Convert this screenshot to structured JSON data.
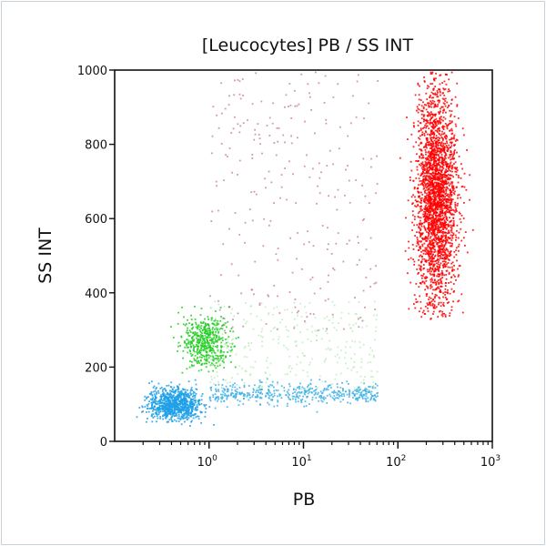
{
  "chart_data": {
    "type": "scatter",
    "title": "[Leucocytes] PB / SS INT",
    "xlabel": "PB",
    "ylabel": "SS INT",
    "xscale": "log",
    "xlim": [
      0.1,
      1000
    ],
    "ylim": [
      0,
      1000
    ],
    "xticks": [
      {
        "value": 1,
        "label": "10",
        "exp": "0"
      },
      {
        "value": 10,
        "label": "10",
        "exp": "1"
      },
      {
        "value": 100,
        "label": "10",
        "exp": "2"
      },
      {
        "value": 1000,
        "label": "10",
        "exp": "3"
      }
    ],
    "yticks": [
      0,
      200,
      400,
      600,
      800,
      1000
    ],
    "grid": false,
    "populations": [
      {
        "color": "#ff0000",
        "x_center": 250,
        "x_log_sd": 0.11,
        "y_center": 660,
        "y_sd": 150,
        "y_range": [
          330,
          1000
        ],
        "count": 2600
      },
      {
        "color": "#22cc22",
        "x_center": 0.9,
        "x_log_sd": 0.12,
        "y_center": 270,
        "y_sd": 35,
        "y_range": [
          180,
          380
        ],
        "count": 500
      },
      {
        "color": "#1fa0e8",
        "x_center": 0.42,
        "x_log_sd": 0.14,
        "y_center": 100,
        "y_sd": 22,
        "y_range": [
          40,
          180
        ],
        "count": 900
      },
      {
        "color": "#3fb0e6",
        "x_range": [
          1,
          60
        ],
        "y_center": 130,
        "y_sd": 15,
        "count": 450
      },
      {
        "color": "#b04060",
        "x_range": [
          1,
          60
        ],
        "y_range": [
          300,
          1000
        ],
        "count": 260
      },
      {
        "color": "#9ce39c",
        "x_range": [
          1,
          60
        ],
        "y_range": [
          140,
          380
        ],
        "count": 300
      }
    ]
  }
}
